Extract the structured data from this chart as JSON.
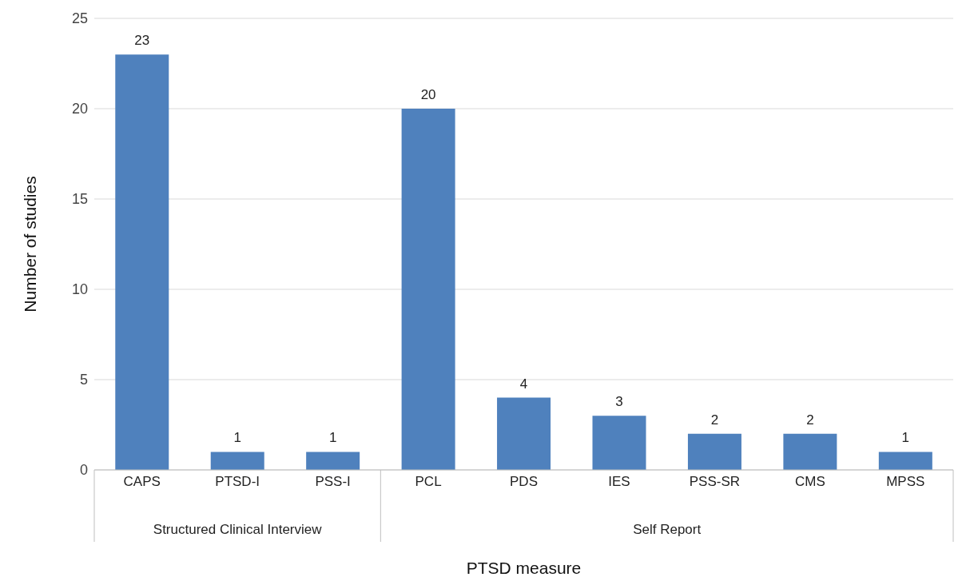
{
  "chart_data": {
    "type": "bar",
    "xlabel": "PTSD measure",
    "ylabel": "Number of studies",
    "categories": [
      "CAPS",
      "PTSD-I",
      "PSS-I",
      "PCL",
      "PDS",
      "IES",
      "PSS-SR",
      "CMS",
      "MPSS"
    ],
    "values": [
      23,
      1,
      1,
      20,
      4,
      3,
      2,
      2,
      1
    ],
    "color": "#4f81bd",
    "ylim": [
      0,
      25
    ],
    "yticks": [
      0,
      5,
      10,
      15,
      20,
      25
    ],
    "grid": "y",
    "data_labels": true,
    "legend": false,
    "annotations": [
      "Structured Clinical Interview",
      "Self Report"
    ]
  }
}
